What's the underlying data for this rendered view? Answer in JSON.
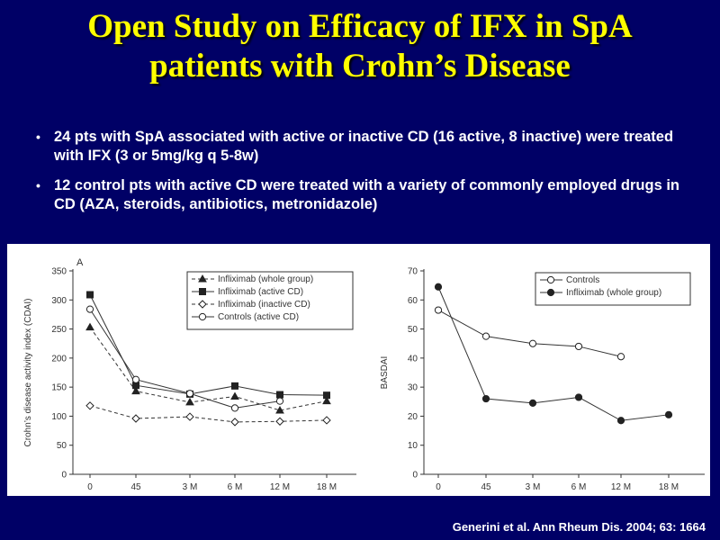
{
  "slide": {
    "title_line1": "Open Study on Efficacy of IFX in SpA",
    "title_line2": "patients with Crohn’s Disease",
    "bullets": [
      "24 pts with SpA associated with active or inactive CD (16 active, 8 inactive) were treated with IFX (3 or 5mg/kg q 5-8w)",
      "12 control pts with active CD were treated with a variety of commonly employed drugs in CD (AZA, steroids, antibiotics, metronidazole)"
    ],
    "bullet_glyph": "•",
    "citation": "Generini et al. Ann Rheum Dis. 2004; 63: 1664",
    "colors": {
      "background": "#000066",
      "title": "#ffff00",
      "text": "#ffffff"
    }
  },
  "chart_data": [
    {
      "type": "line",
      "panel_label": "A",
      "categories": [
        "0",
        "45",
        "3 M",
        "6 M",
        "12 M",
        "18 M"
      ],
      "ylabel": "Crohn’s disease activity index (CDAI)",
      "xlabel": "",
      "ylim": [
        0,
        350
      ],
      "yticks": [
        0,
        50,
        100,
        150,
        200,
        250,
        300,
        350
      ],
      "legend_position": "top-right",
      "series": [
        {
          "name": "Infliximab (whole group)",
          "marker": "triangle-filled",
          "dash": "dashed",
          "values": [
            253,
            143,
            124,
            134,
            110,
            126
          ]
        },
        {
          "name": "Infliximab (active CD)",
          "marker": "square-filled",
          "dash": "solid",
          "values": [
            309,
            153,
            138,
            152,
            137,
            136
          ]
        },
        {
          "name": "Infliximab (inactive CD)",
          "marker": "diamond-open",
          "dash": "dashed",
          "values": [
            118,
            96,
            99,
            90,
            91,
            93
          ]
        },
        {
          "name": "Controls (active CD)",
          "marker": "circle-open",
          "dash": "solid",
          "values": [
            284,
            163,
            139,
            114,
            126,
            null
          ]
        }
      ]
    },
    {
      "type": "line",
      "categories": [
        "0",
        "45",
        "3 M",
        "6 M",
        "12 M",
        "18 M"
      ],
      "ylabel": "BASDAI",
      "xlabel": "",
      "ylim": [
        0,
        70
      ],
      "yticks": [
        0,
        10,
        20,
        30,
        40,
        50,
        60,
        70
      ],
      "legend_position": "top-right",
      "series": [
        {
          "name": "Controls",
          "marker": "circle-open",
          "dash": "solid",
          "values": [
            56.5,
            47.5,
            45,
            44,
            40.5,
            null
          ]
        },
        {
          "name": "Infliximab (whole group)",
          "marker": "circle-filled",
          "dash": "solid",
          "values": [
            64.5,
            26,
            24.5,
            26.5,
            18.5,
            20.5
          ]
        }
      ]
    }
  ]
}
